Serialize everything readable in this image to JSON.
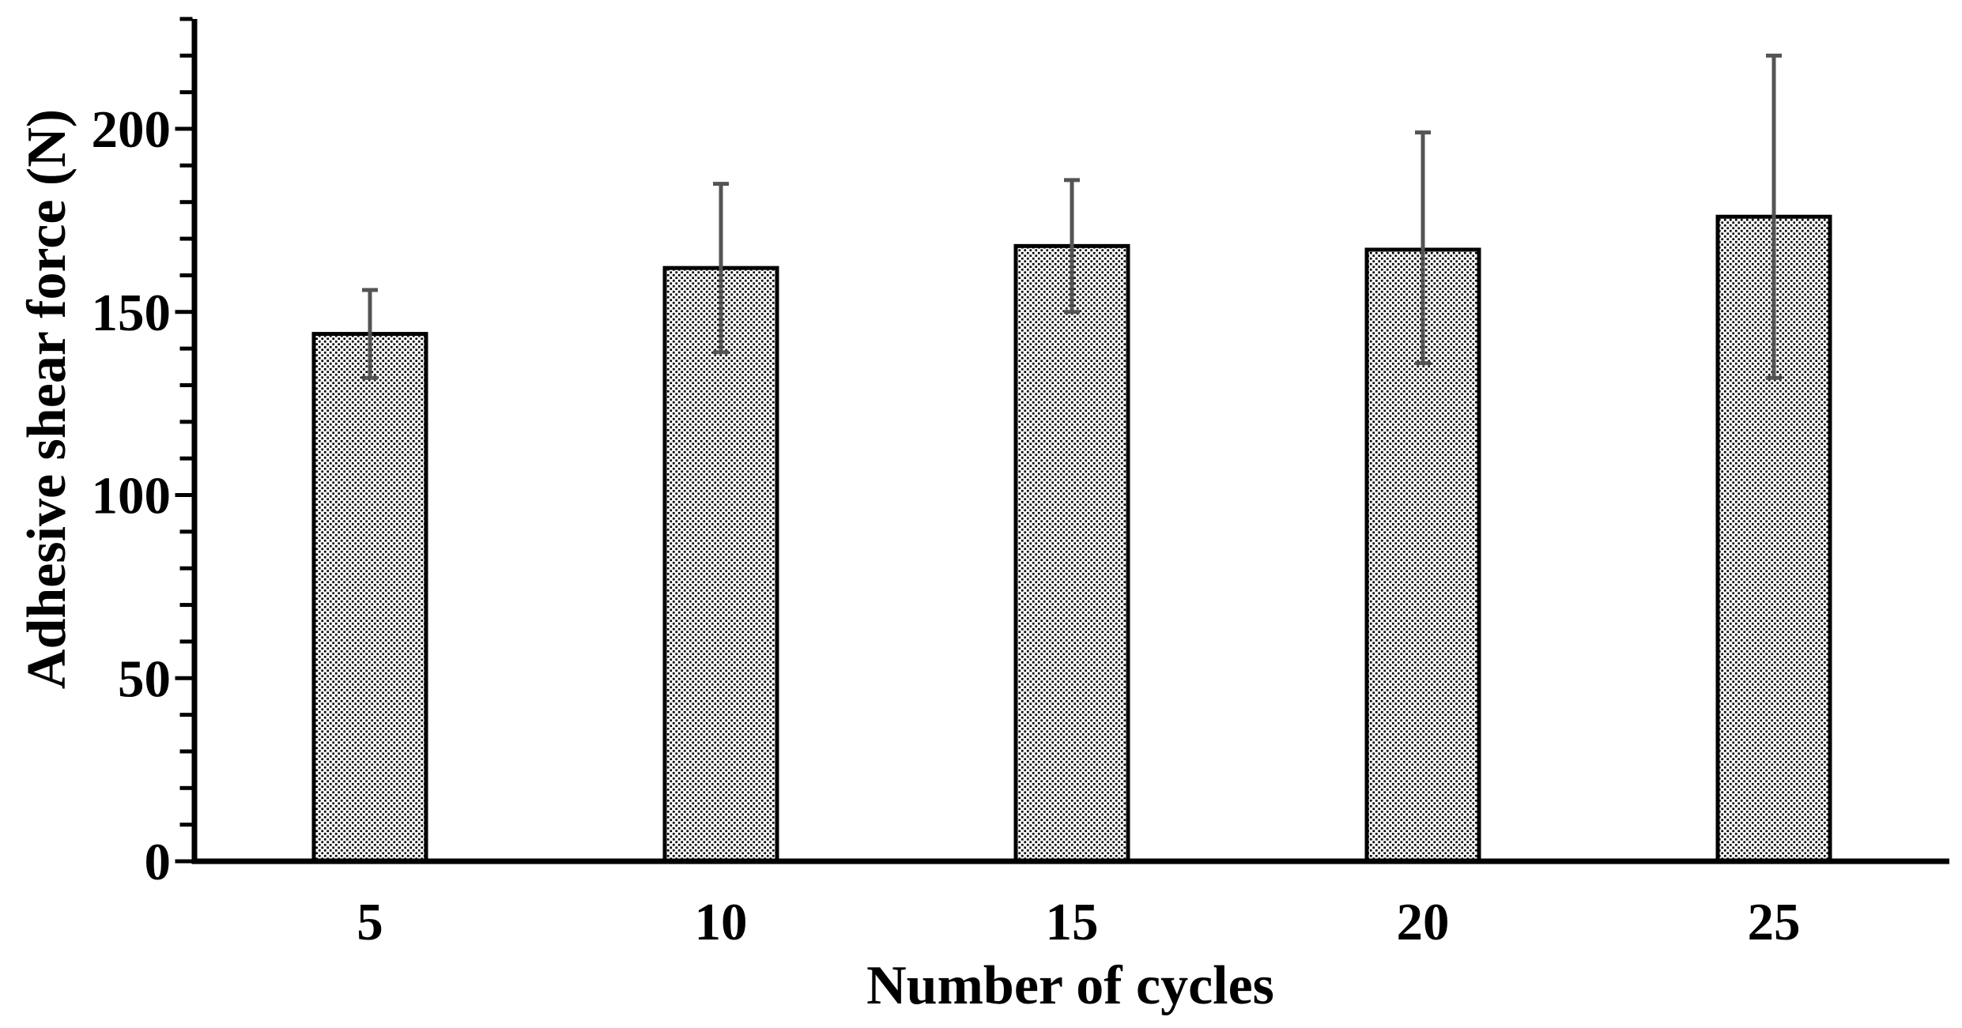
{
  "chart_data": {
    "type": "bar",
    "title": "",
    "xlabel": "Number of cycles",
    "ylabel": "Adhesive shear force (N)",
    "categories": [
      "5",
      "10",
      "15",
      "20",
      "25"
    ],
    "values": [
      144,
      162,
      168,
      167,
      176
    ],
    "error_upper": [
      156,
      185,
      186,
      199,
      220
    ],
    "error_lower": [
      132,
      139,
      150,
      136,
      132
    ],
    "ylim": [
      0,
      230
    ],
    "y_major_ticks": [
      0,
      50,
      100,
      150,
      200
    ],
    "y_major_tick_labels": [
      "0",
      "50",
      "100",
      "150",
      "200"
    ],
    "y_minor_tick_step": 10,
    "grid": false,
    "legend": "none",
    "bar_fill_style": "black dot stipple pattern on white",
    "colors": {
      "background": "#ffffff",
      "axis": "#000000",
      "text": "#000000",
      "bar_border": "#000000",
      "bar_dot": "#000000",
      "bar_background": "#ffffff",
      "error_bar": "#545454"
    }
  }
}
